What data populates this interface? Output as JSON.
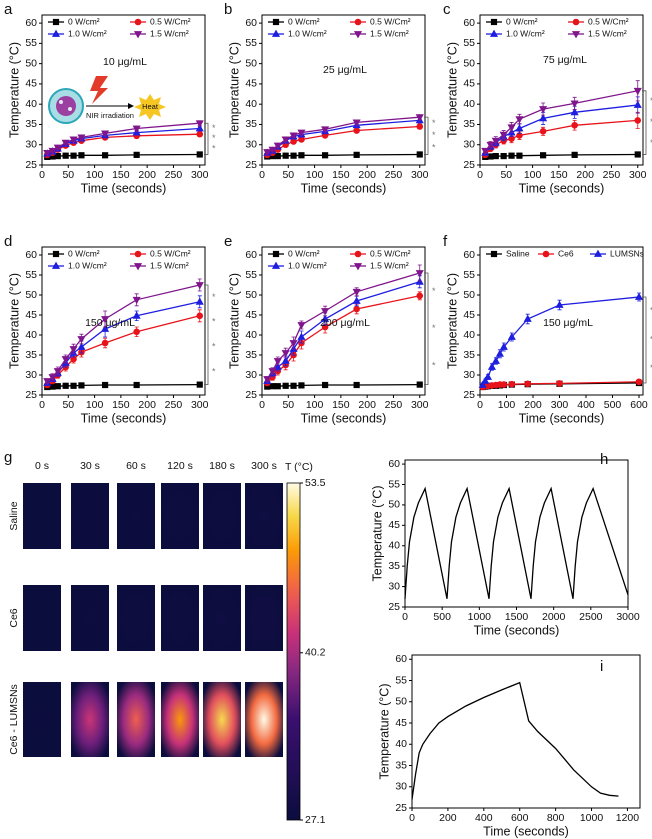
{
  "chart_data": [
    {
      "type": "line",
      "label": "a",
      "annotation": "10 μg/mL",
      "inset_labels": [
        "NIR irradiation",
        "Heat"
      ],
      "xlabel": "Time (seconds)",
      "ylabel": "Temperature (°C)",
      "xlim": [
        0,
        310
      ],
      "ylim": [
        25,
        62
      ],
      "xticks": [
        0,
        50,
        100,
        150,
        200,
        250,
        300
      ],
      "yticks": [
        25,
        30,
        35,
        40,
        45,
        50,
        55,
        60
      ],
      "x": [
        10,
        20,
        30,
        45,
        60,
        75,
        120,
        180,
        300
      ],
      "series": [
        {
          "name": "0 W/cm²",
          "color": "#000000",
          "marker": "square",
          "values": [
            27,
            27.1,
            27.2,
            27.3,
            27.3,
            27.4,
            27.4,
            27.5,
            27.6
          ],
          "errors": [
            0.2,
            0.2,
            0.2,
            0.2,
            0.2,
            0.2,
            0.2,
            0.2,
            0.2
          ]
        },
        {
          "name": "0.5 W/Cm²",
          "color": "#e8131b",
          "marker": "circle",
          "values": [
            27.5,
            28,
            28.8,
            29.8,
            30.5,
            31,
            31.8,
            32.2,
            32.6
          ],
          "errors": [
            0.3,
            0.3,
            0.4,
            0.4,
            0.5,
            0.5,
            0.5,
            0.6,
            0.6
          ]
        },
        {
          "name": "1.0 W/cm²",
          "color": "#1f1fe0",
          "marker": "triangle",
          "values": [
            27.8,
            28.3,
            29,
            30.2,
            31,
            31.5,
            32.3,
            33,
            34
          ],
          "errors": [
            0.3,
            0.3,
            0.4,
            0.4,
            0.5,
            0.5,
            0.5,
            0.6,
            0.6
          ]
        },
        {
          "name": "1.5 W/cm²",
          "color": "#80168c",
          "marker": "triangle-down",
          "values": [
            28,
            28.5,
            29.3,
            30.5,
            31.3,
            31.8,
            32.8,
            34,
            35.3
          ],
          "errors": [
            0.3,
            0.3,
            0.4,
            0.4,
            0.5,
            0.5,
            0.5,
            0.6,
            0.6
          ]
        }
      ],
      "significance": [
        "*",
        "*",
        "*"
      ]
    },
    {
      "type": "line",
      "label": "b",
      "annotation": "25 μg/mL",
      "xlabel": "Time (seconds)",
      "ylabel": "Temperature (°C)",
      "xlim": [
        0,
        310
      ],
      "ylim": [
        25,
        62
      ],
      "xticks": [
        0,
        50,
        100,
        150,
        200,
        250,
        300
      ],
      "yticks": [
        25,
        30,
        35,
        40,
        45,
        50,
        55,
        60
      ],
      "x": [
        10,
        20,
        30,
        45,
        60,
        75,
        120,
        180,
        300
      ],
      "series": [
        {
          "name": "0 W/cm²",
          "color": "#000000",
          "marker": "square",
          "values": [
            27.1,
            27.2,
            27.2,
            27.3,
            27.3,
            27.4,
            27.4,
            27.5,
            27.6
          ],
          "errors": [
            0.2,
            0.2,
            0.2,
            0.2,
            0.2,
            0.2,
            0.2,
            0.2,
            0.2
          ]
        },
        {
          "name": "0.5 W/Cm²",
          "color": "#e8131b",
          "marker": "circle",
          "values": [
            27.5,
            28,
            28.8,
            30,
            30.8,
            31.3,
            32.3,
            33.5,
            34.5
          ],
          "errors": [
            0.3,
            0.4,
            0.4,
            0.5,
            0.5,
            0.5,
            0.5,
            0.5,
            0.6
          ]
        },
        {
          "name": "1.0 W/cm²",
          "color": "#1f1fe0",
          "marker": "triangle",
          "values": [
            28,
            28.5,
            29.5,
            31,
            32,
            32.5,
            33.3,
            34.8,
            36
          ],
          "errors": [
            0.3,
            0.4,
            0.4,
            0.5,
            0.5,
            0.5,
            0.5,
            0.5,
            0.6
          ]
        },
        {
          "name": "1.5 W/cm²",
          "color": "#80168c",
          "marker": "triangle-down",
          "values": [
            28.2,
            28.8,
            29.8,
            31.3,
            32.3,
            33,
            33.8,
            35.5,
            36.8
          ],
          "errors": [
            0.3,
            0.4,
            0.4,
            0.5,
            0.5,
            0.5,
            0.5,
            0.5,
            0.6
          ]
        }
      ],
      "significance": [
        "*",
        "*",
        "*"
      ]
    },
    {
      "type": "line",
      "label": "c",
      "annotation": "75 μg/mL",
      "xlabel": "Time (seconds)",
      "ylabel": "Temperature (°C)",
      "xlim": [
        0,
        310
      ],
      "ylim": [
        25,
        62
      ],
      "xticks": [
        0,
        50,
        100,
        150,
        200,
        250,
        300
      ],
      "yticks": [
        25,
        30,
        35,
        40,
        45,
        50,
        55,
        60
      ],
      "x": [
        10,
        20,
        30,
        45,
        60,
        75,
        120,
        180,
        300
      ],
      "series": [
        {
          "name": "0 W/cm²",
          "color": "#000000",
          "marker": "square",
          "values": [
            27,
            27.1,
            27.2,
            27.2,
            27.3,
            27.3,
            27.4,
            27.5,
            27.6
          ],
          "errors": [
            0.2,
            0.2,
            0.2,
            0.2,
            0.2,
            0.2,
            0.2,
            0.2,
            0.2
          ]
        },
        {
          "name": "0.5 W/Cm²",
          "color": "#e8131b",
          "marker": "circle",
          "values": [
            27.5,
            29,
            30,
            31,
            31.5,
            32.3,
            33.3,
            34.8,
            36
          ],
          "errors": [
            0.4,
            0.6,
            0.8,
            0.8,
            1,
            1,
            1,
            1.2,
            2
          ]
        },
        {
          "name": "1.0 W/cm²",
          "color": "#1f1fe0",
          "marker": "triangle",
          "values": [
            28,
            29.5,
            30.5,
            32,
            33,
            34,
            36.5,
            38,
            39.8
          ],
          "errors": [
            0.4,
            0.6,
            0.8,
            1,
            1,
            1.2,
            1.5,
            1.5,
            2
          ]
        },
        {
          "name": "1.5 W/cm²",
          "color": "#80168c",
          "marker": "triangle-down",
          "values": [
            28.5,
            30,
            31,
            32.5,
            34.3,
            36.3,
            38.8,
            40.2,
            43.3
          ],
          "errors": [
            0.5,
            0.8,
            1,
            1,
            1.2,
            1.2,
            1.5,
            1.5,
            2.5
          ]
        }
      ],
      "significance": [
        "*",
        "*",
        "*"
      ]
    },
    {
      "type": "line",
      "label": "d",
      "annotation": "150 μg/mL",
      "xlabel": "Time (seconds)",
      "ylabel": "Temperature (°C)",
      "xlim": [
        0,
        310
      ],
      "ylim": [
        25,
        62
      ],
      "xticks": [
        0,
        50,
        100,
        150,
        200,
        250,
        300
      ],
      "yticks": [
        25,
        30,
        35,
        40,
        45,
        50,
        55,
        60
      ],
      "x": [
        10,
        20,
        30,
        45,
        60,
        75,
        120,
        180,
        300
      ],
      "series": [
        {
          "name": "0 W/cm²",
          "color": "#000000",
          "marker": "square",
          "values": [
            27,
            27.1,
            27.2,
            27.3,
            27.3,
            27.4,
            27.5,
            27.5,
            27.6
          ],
          "errors": [
            0.2,
            0.2,
            0.2,
            0.2,
            0.2,
            0.2,
            0.2,
            0.2,
            0.2
          ]
        },
        {
          "name": "0.5 W/Cm²",
          "color": "#e8131b",
          "marker": "circle",
          "values": [
            27.5,
            28.5,
            30,
            32,
            34,
            35.7,
            38,
            40.8,
            44.8
          ],
          "errors": [
            0.4,
            0.6,
            0.8,
            1,
            1,
            1.2,
            1.2,
            1.2,
            1.5
          ]
        },
        {
          "name": "1.0 W/cm²",
          "color": "#1f1fe0",
          "marker": "triangle",
          "values": [
            28,
            29,
            30.5,
            33,
            35.5,
            37,
            41.5,
            44.8,
            48.3
          ],
          "errors": [
            0.4,
            0.6,
            0.8,
            1,
            1,
            1.5,
            2,
            1.2,
            1.5
          ]
        },
        {
          "name": "1.5 W/cm²",
          "color": "#80168c",
          "marker": "triangle-down",
          "values": [
            28.5,
            29.5,
            31,
            34,
            36.5,
            39,
            44,
            48.8,
            52.5
          ],
          "errors": [
            0.5,
            0.8,
            1,
            1,
            1.2,
            1.2,
            2,
            1.5,
            1.5
          ]
        }
      ],
      "significance": [
        "*",
        "*",
        "*",
        "*"
      ]
    },
    {
      "type": "line",
      "label": "e",
      "annotation": "200 μg/mL",
      "xlabel": "Time (seconds)",
      "ylabel": "Temperature (°C)",
      "xlim": [
        0,
        310
      ],
      "ylim": [
        25,
        62
      ],
      "xticks": [
        0,
        50,
        100,
        150,
        200,
        250,
        300
      ],
      "yticks": [
        25,
        30,
        35,
        40,
        45,
        50,
        55,
        60
      ],
      "x": [
        10,
        20,
        30,
        45,
        60,
        75,
        120,
        180,
        300
      ],
      "series": [
        {
          "name": "0 W/cm²",
          "color": "#000000",
          "marker": "square",
          "values": [
            27.1,
            27.2,
            27.2,
            27.3,
            27.3,
            27.4,
            27.5,
            27.5,
            27.6
          ],
          "errors": [
            0.2,
            0.2,
            0.2,
            0.2,
            0.2,
            0.2,
            0.2,
            0.2,
            0.2
          ]
        },
        {
          "name": "0.5 W/Cm²",
          "color": "#e8131b",
          "marker": "circle",
          "values": [
            28,
            29.5,
            31,
            32.5,
            35,
            38,
            42,
            46.5,
            49.8
          ],
          "errors": [
            0.6,
            0.8,
            1,
            1.2,
            1.5,
            1.5,
            1.5,
            1.2,
            1
          ]
        },
        {
          "name": "1.0 W/cm²",
          "color": "#1f1fe0",
          "marker": "triangle",
          "values": [
            28.5,
            30.5,
            32,
            33.5,
            36.5,
            39.5,
            44,
            48.5,
            53.3
          ],
          "errors": [
            0.6,
            0.8,
            1,
            1.2,
            1.5,
            1.5,
            1.5,
            1.2,
            1.5
          ]
        },
        {
          "name": "1.5 W/cm²",
          "color": "#80168c",
          "marker": "triangle-down",
          "values": [
            29,
            31,
            33.5,
            35.5,
            38,
            42.5,
            46,
            50.8,
            55.5
          ],
          "errors": [
            0.6,
            0.8,
            1,
            1.2,
            1.5,
            1,
            1.2,
            1,
            2
          ]
        }
      ],
      "significance": [
        "*",
        "*",
        "*"
      ]
    },
    {
      "type": "line",
      "label": "f",
      "annotation": "150 μg/mL",
      "xlabel": "Time (seconds)",
      "ylabel": "Temperature (°C)",
      "xlim": [
        0,
        615
      ],
      "ylim": [
        25,
        62
      ],
      "xticks": [
        0,
        100,
        200,
        300,
        400,
        500,
        600
      ],
      "yticks": [
        25,
        30,
        35,
        40,
        45,
        50,
        55,
        60
      ],
      "x": [
        10,
        20,
        30,
        45,
        60,
        75,
        90,
        120,
        180,
        300,
        600
      ],
      "series": [
        {
          "name": "Saline",
          "color": "#000000",
          "marker": "square",
          "values": [
            27,
            27.1,
            27.2,
            27.3,
            27.3,
            27.4,
            27.5,
            27.6,
            27.7,
            27.8,
            28
          ],
          "errors": [
            0.2,
            0.2,
            0.2,
            0.2,
            0.2,
            0.2,
            0.2,
            0.3,
            0.3,
            0.3,
            0.4
          ]
        },
        {
          "name": "Ce6",
          "color": "#e8131b",
          "marker": "circle",
          "values": [
            27,
            27.2,
            27.3,
            27.4,
            27.5,
            27.6,
            27.6,
            27.7,
            27.8,
            27.9,
            28.3
          ],
          "errors": [
            0.3,
            0.3,
            0.3,
            0.3,
            0.4,
            0.4,
            0.4,
            0.5,
            0.6,
            0.6,
            0.6
          ]
        },
        {
          "name": "LUMSNs",
          "color": "#1f1fe0",
          "marker": "triangle",
          "values": [
            27.5,
            28.5,
            29.5,
            32,
            33.5,
            35.3,
            37,
            39.5,
            44,
            47.5,
            49.5
          ],
          "errors": [
            0.5,
            0.5,
            0.6,
            0.8,
            0.8,
            1,
            1,
            1,
            1.2,
            1.2,
            1
          ]
        }
      ],
      "significance": [
        "*",
        "*",
        "*"
      ]
    },
    {
      "type": "thermal-image",
      "label": "g",
      "columns": [
        "0 s",
        "30 s",
        "60 s",
        "120 s",
        "180 s",
        "300 s"
      ],
      "rows": [
        {
          "name": "Saline",
          "values": [
            27.1,
            27.3,
            27.4,
            27.5,
            27.6,
            27.7
          ]
        },
        {
          "name": "Ce6",
          "values": [
            27.1,
            27.4,
            27.5,
            27.6,
            27.7,
            28
          ]
        },
        {
          "name": "Ce6 - LUMSNs",
          "values": [
            27.2,
            42,
            45,
            48,
            51,
            53.5
          ]
        }
      ],
      "colorbar_label": "T (°C)",
      "clim": [
        27.1,
        53.5
      ],
      "cticks": [
        53.5,
        40.2,
        27.1
      ]
    },
    {
      "type": "line",
      "label": "h",
      "xlabel": "Time (seconds)",
      "ylabel": "Temperature (°C)",
      "color": "#000000",
      "xlim": [
        0,
        3000
      ],
      "ylim": [
        25,
        61
      ],
      "xticks": [
        0,
        500,
        1000,
        1500,
        2000,
        2500,
        3000
      ],
      "yticks": [
        25,
        30,
        35,
        40,
        45,
        50,
        55,
        60
      ],
      "x": [
        0,
        30,
        60,
        120,
        180,
        270,
        565,
        595,
        625,
        685,
        745,
        835,
        1130,
        1160,
        1190,
        1250,
        1310,
        1400,
        1695,
        1725,
        1755,
        1815,
        1875,
        1965,
        2260,
        2290,
        2320,
        2380,
        2440,
        2530,
        3000
      ],
      "values": [
        27,
        35,
        41,
        47,
        50.5,
        54,
        27,
        35,
        41,
        47,
        50.5,
        54,
        27,
        35,
        41,
        47,
        50.5,
        54,
        27,
        35,
        41,
        47,
        50.5,
        54,
        27,
        35,
        41,
        47,
        50.5,
        54,
        28
      ]
    },
    {
      "type": "line",
      "label": "i",
      "xlabel": "Time (seconds)",
      "ylabel": "Temperature (°C)",
      "color": "#000000",
      "xlim": [
        0,
        1270
      ],
      "ylim": [
        25,
        61
      ],
      "xticks": [
        0,
        200,
        400,
        600,
        800,
        1000,
        1200
      ],
      "yticks": [
        25,
        30,
        35,
        40,
        45,
        50,
        55,
        60
      ],
      "x": [
        0,
        20,
        40,
        60,
        100,
        150,
        200,
        300,
        400,
        500,
        600,
        650,
        700,
        800,
        850,
        900,
        1000,
        1050,
        1100,
        1150
      ],
      "values": [
        27,
        33,
        38,
        40,
        42.5,
        45,
        46.5,
        49,
        51,
        52.8,
        54.5,
        45.5,
        43,
        39,
        36.5,
        34,
        30,
        28.5,
        28,
        27.8
      ]
    }
  ]
}
